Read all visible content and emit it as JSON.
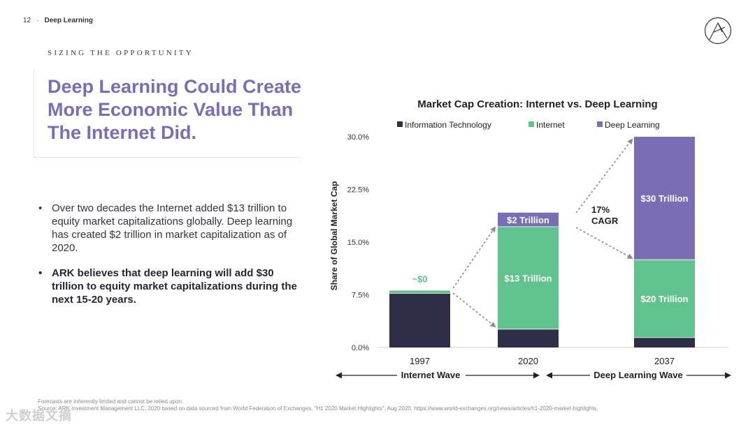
{
  "header": {
    "page_number": "12",
    "separator": "·",
    "section": "Deep Learning"
  },
  "kicker": "SIZING THE OPPORTUNITY",
  "title": {
    "line1": "Deep Learning Could Create",
    "line2": "More Economic Value Than",
    "line3": "The Internet Did."
  },
  "bullets": [
    {
      "text": "Over two decades the Internet added $13 trillion to equity market capitalizations globally. Deep learning has created $2 trillion in market capitalization as of 2020."
    },
    {
      "text": "ARK believes that deep learning will add $30 trillion to equity market capitalizations during the next 15-20 years."
    }
  ],
  "bullet_symbol": "•",
  "footer": {
    "line1": "Forecasts are inherently limited and cannot be relied upon.",
    "line2": "Source: ARK Investment Management LLC, 2020 based on data sourced from World Federation of Exchanges, \"H1 2020 Market Highlights\", Aug 2020, https://www.world-exchanges.org/news/articles/h1-2020-market-highlights."
  },
  "watermark": "大数据文摘",
  "colors": {
    "it": "#2f2e48",
    "internet": "#60c38d",
    "deep_learning": "#7a6db5",
    "title": "#7b6cb5",
    "arrow": "#8a8a8a"
  },
  "chart_data": {
    "type": "bar",
    "stacked": true,
    "title": "Market Cap Creation: Internet vs. Deep Learning",
    "ylabel": "Share of Global Market Cap",
    "ylim": [
      0,
      30
    ],
    "yticks": [
      "0.0%",
      "7.5%",
      "15.0%",
      "22.5%",
      "30.0%"
    ],
    "ytick_values": [
      0,
      7.5,
      15,
      22.5,
      30
    ],
    "categories": [
      "1997",
      "2020",
      "2037"
    ],
    "series": [
      {
        "name": "Information Technology",
        "values": [
          7.7,
          2.6,
          1.4
        ]
      },
      {
        "name": "Internet",
        "values": [
          0.4,
          14.6,
          11.1
        ]
      },
      {
        "name": "Deep Learning",
        "values": [
          0,
          2.0,
          17.5
        ]
      }
    ],
    "data_labels": [
      {
        "category": "1997",
        "series": "Internet",
        "text": "~$0"
      },
      {
        "category": "2020",
        "series": "Internet",
        "text": "$13 Trillion"
      },
      {
        "category": "2020",
        "series": "Deep Learning",
        "text": "$2 Trillion"
      },
      {
        "category": "2037",
        "series": "Internet",
        "text": "$20 Trillion"
      },
      {
        "category": "2037",
        "series": "Deep Learning",
        "text": "$30 Trillion"
      }
    ],
    "cagr_label": {
      "line1": "17%",
      "line2": "CAGR"
    },
    "waves": [
      {
        "label": "Internet Wave"
      },
      {
        "label": "Deep Learning Wave"
      }
    ]
  }
}
